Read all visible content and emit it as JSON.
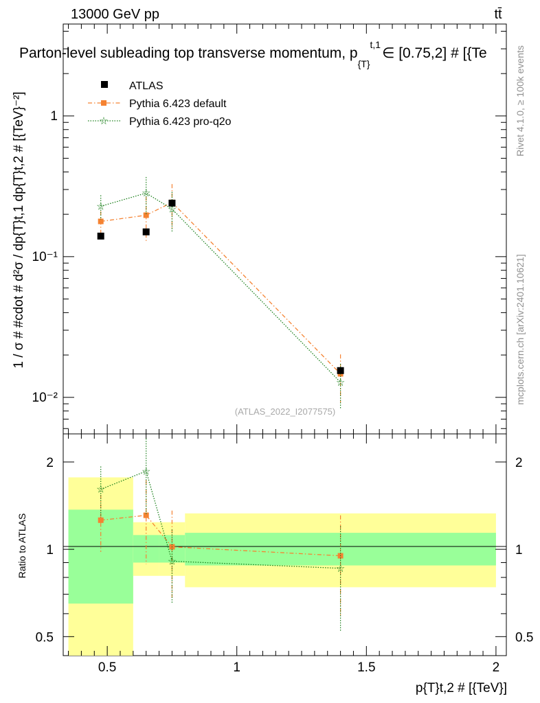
{
  "header": {
    "left": "13000 GeV pp",
    "right": "tt̄"
  },
  "title": "Parton-level subleading top transverse momentum, p",
  "title_sub": "{T}",
  "title_sup": "t,1",
  "title_tail": "∈ [0.75,2] # [{Te",
  "side_text_top": "Rivet 4.1.0, ≥ 100k events",
  "side_text_bottom": "mcplots.cern.ch [arXiv:2401.10621]",
  "watermark": "(ATLAS_2022_I2077575)",
  "ylabel_main": "1 / σ # #cdot # d²σ / dp{T}t,1 dp{T}t,2 # [{TeV}⁻²]",
  "ylabel_ratio": "Ratio to ATLAS",
  "xlabel": "p{T}t,2 # [{TeV}]",
  "legend": [
    "ATLAS",
    "Pythia 6.423 default",
    "Pythia 6.423 pro-q2o"
  ],
  "colors": {
    "data": "#000000",
    "default": "#f58231",
    "proq2o": "#1a7f1a",
    "band_inner": "#99ff99",
    "band_outer": "#ffff99"
  },
  "chart_data": {
    "type": "scatter",
    "xlim": [
      0.33,
      2.04
    ],
    "x_ticks": [
      0.5,
      1,
      1.5,
      2
    ],
    "x_tick_labels": [
      "0.5",
      "1",
      "1.5",
      "2"
    ],
    "bins": [
      [
        0.35,
        0.6
      ],
      [
        0.6,
        0.7
      ],
      [
        0.7,
        0.8
      ],
      [
        0.8,
        2.0
      ]
    ],
    "main": {
      "yscale": "log",
      "ylim": [
        0.0055,
        4.5
      ],
      "y_tick_labels": [
        "10⁻²",
        "10⁻¹",
        "1"
      ],
      "series": [
        {
          "name": "ATLAS",
          "x": [
            0.475,
            0.65,
            0.75,
            1.4
          ],
          "values": [
            0.14,
            0.15,
            0.24,
            0.0155
          ]
        },
        {
          "name": "Pythia 6.423 default",
          "x": [
            0.475,
            0.65,
            0.75,
            1.4
          ],
          "values": [
            0.178,
            0.197,
            0.243,
            0.0147
          ],
          "err": [
            0.032,
            0.07,
            0.085,
            0.0055
          ]
        },
        {
          "name": "Pythia 6.423 pro-q2o",
          "x": [
            0.475,
            0.65,
            0.75,
            1.4
          ],
          "values": [
            0.228,
            0.283,
            0.218,
            0.0128
          ],
          "err": [
            0.045,
            0.085,
            0.07,
            0.0045
          ]
        }
      ]
    },
    "ratio": {
      "yscale": "log",
      "ylim": [
        0.43,
        2.5
      ],
      "y_ticks": [
        0.5,
        1,
        2
      ],
      "y_tick_labels": [
        "0.5",
        "1",
        "2"
      ],
      "band_inner": [
        [
          0.65,
          1.37
        ],
        [
          0.9,
          1.12
        ],
        [
          0.9,
          1.12
        ],
        [
          0.88,
          1.14
        ]
      ],
      "band_outer": [
        [
          0.43,
          1.77
        ],
        [
          0.81,
          1.24
        ],
        [
          0.81,
          1.24
        ],
        [
          0.74,
          1.33
        ]
      ],
      "series": [
        {
          "name": "Pythia 6.423 default",
          "x": [
            0.475,
            0.65,
            0.75,
            1.4
          ],
          "values": [
            1.26,
            1.31,
            1.02,
            0.95
          ],
          "err": [
            0.28,
            0.42,
            0.34,
            0.36
          ]
        },
        {
          "name": "Pythia 6.423 pro-q2o",
          "x": [
            0.475,
            0.65,
            0.75,
            1.4
          ],
          "values": [
            1.61,
            1.86,
            0.91,
            0.86
          ],
          "err": [
            0.32,
            0.55,
            0.26,
            0.34
          ]
        }
      ]
    }
  }
}
